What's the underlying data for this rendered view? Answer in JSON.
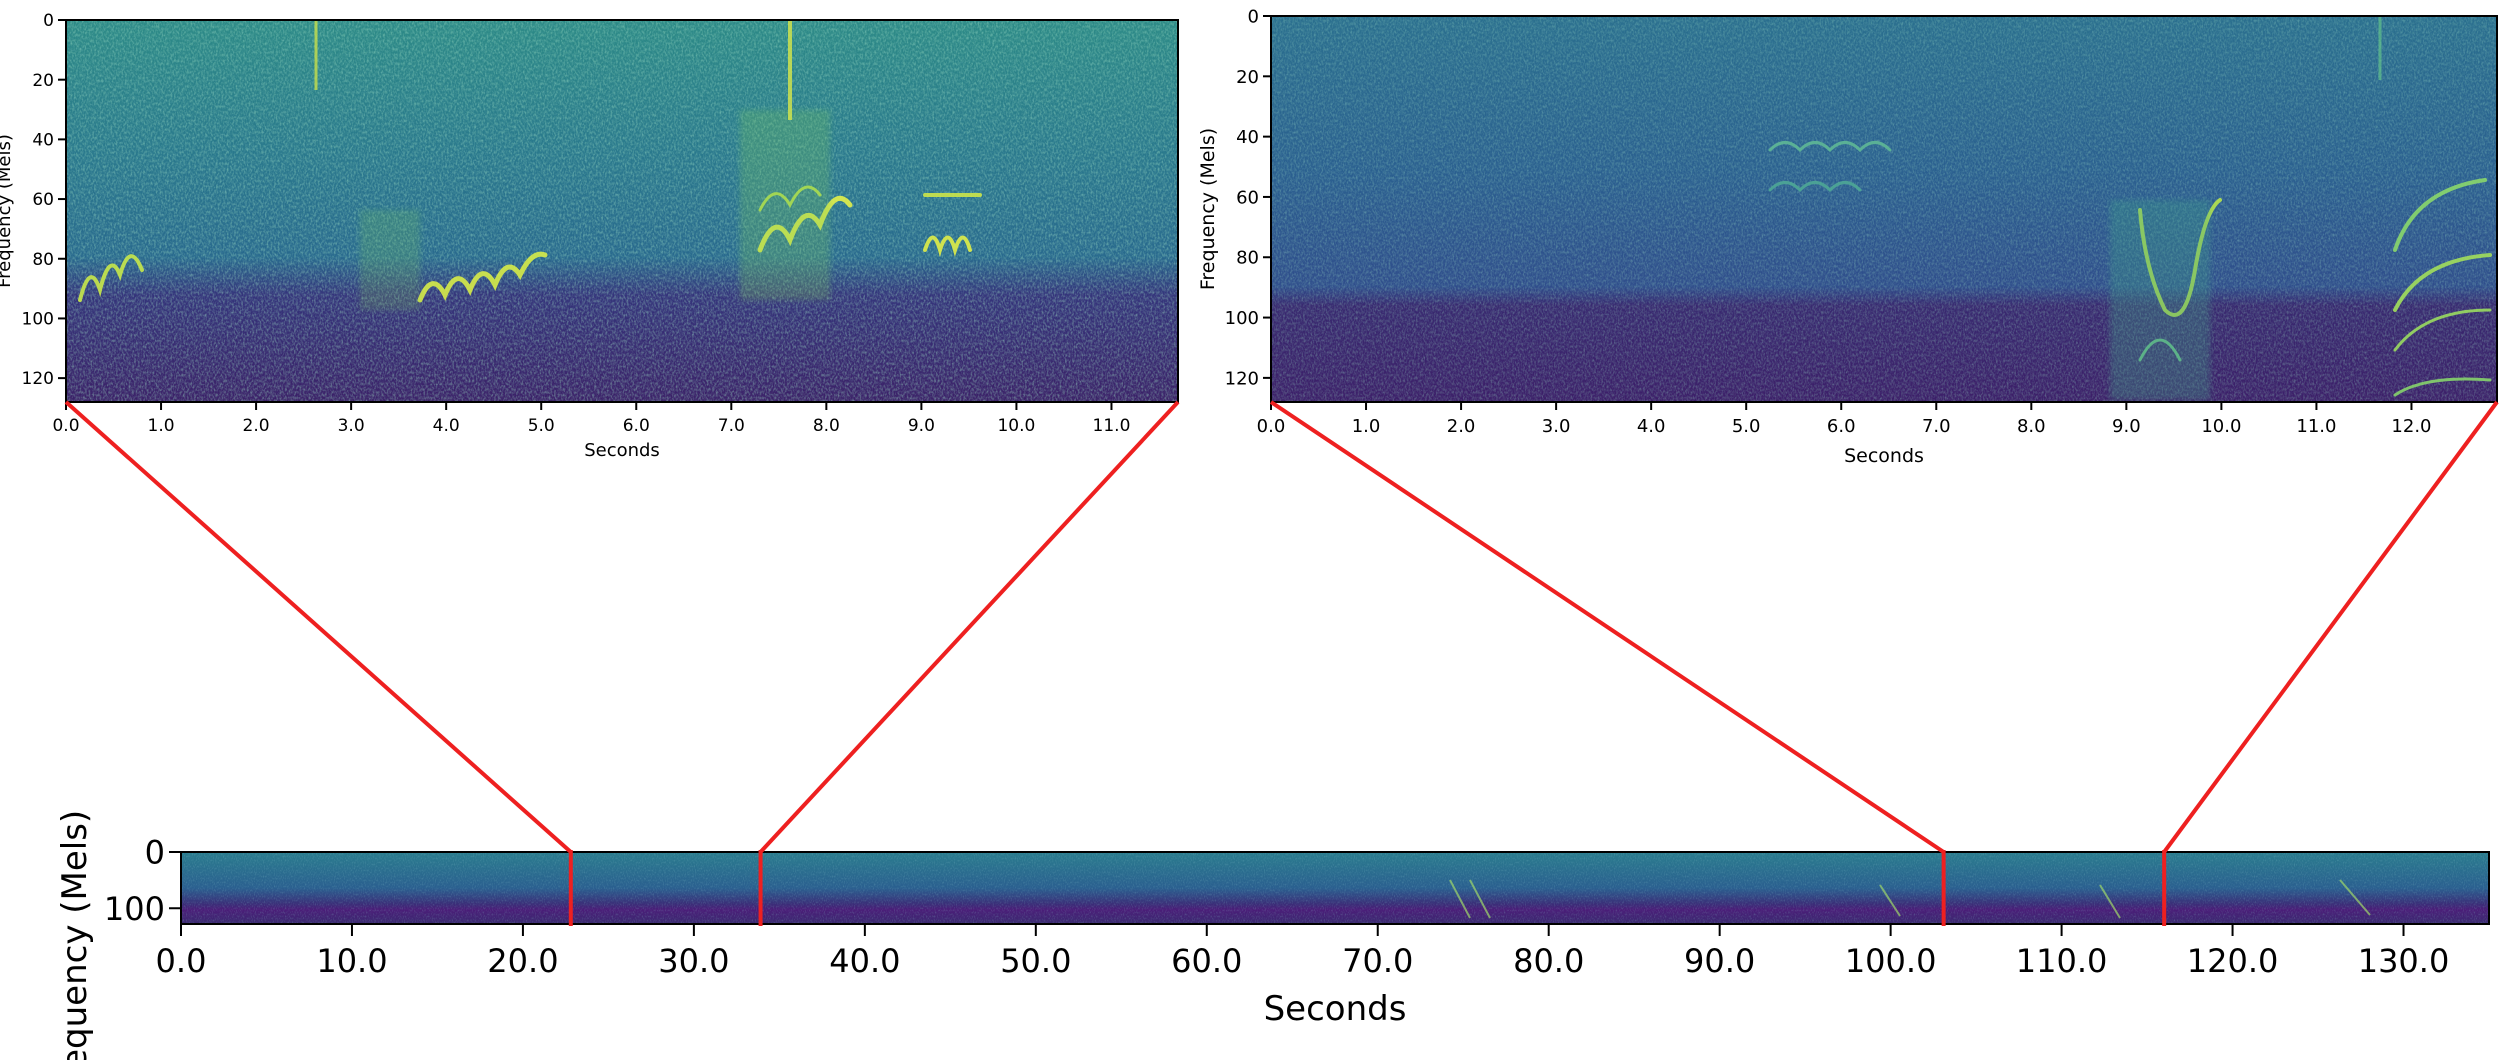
{
  "colors": {
    "spec_background": "#3a5b8c",
    "spec_low": "#3b1f66",
    "spec_mid": "#2b8a8a",
    "spec_high": "#e8f048",
    "zoom_line": "#ee2020",
    "frame": "#000000"
  },
  "chart_data": [
    {
      "type": "heatmap",
      "subtype": "mel-spectrogram",
      "xlabel": "Seconds",
      "ylabel": "Frequency (Mels)",
      "xlim": [
        0.0,
        11.7
      ],
      "ylim": [
        128,
        0
      ],
      "x_ticks": [
        "0.0",
        "1.0",
        "2.0",
        "3.0",
        "4.0",
        "5.0",
        "6.0",
        "7.0",
        "8.0",
        "9.0",
        "10.0",
        "11.0"
      ],
      "y_ticks": [
        "0",
        "20",
        "40",
        "60",
        "80",
        "100",
        "120"
      ],
      "grid": false
    },
    {
      "type": "heatmap",
      "subtype": "mel-spectrogram",
      "xlabel": "Seconds",
      "ylabel": "Frequency (Mels)",
      "xlim": [
        0.0,
        12.9
      ],
      "ylim": [
        128,
        0
      ],
      "x_ticks": [
        "0.0",
        "1.0",
        "2.0",
        "3.0",
        "4.0",
        "5.0",
        "6.0",
        "7.0",
        "8.0",
        "9.0",
        "10.0",
        "11.0",
        "12.0"
      ],
      "y_ticks": [
        "0",
        "20",
        "40",
        "60",
        "80",
        "100",
        "120"
      ],
      "grid": false
    },
    {
      "type": "heatmap",
      "subtype": "mel-spectrogram",
      "xlabel": "Seconds",
      "ylabel": "Frequency (Mels)",
      "xlim": [
        0.0,
        135.0
      ],
      "ylim": [
        128,
        0
      ],
      "x_ticks": [
        "0.0",
        "10.0",
        "20.0",
        "30.0",
        "40.0",
        "50.0",
        "60.0",
        "70.0",
        "80.0",
        "90.0",
        "100.0",
        "110.0",
        "120.0",
        "130.0"
      ],
      "y_ticks": [
        "0",
        "100"
      ],
      "grid": false,
      "highlighted_segments": [
        {
          "start": 22.8,
          "end": 33.9,
          "zoom_panel": 0
        },
        {
          "start": 103.1,
          "end": 116.0,
          "zoom_panel": 1
        }
      ]
    }
  ]
}
